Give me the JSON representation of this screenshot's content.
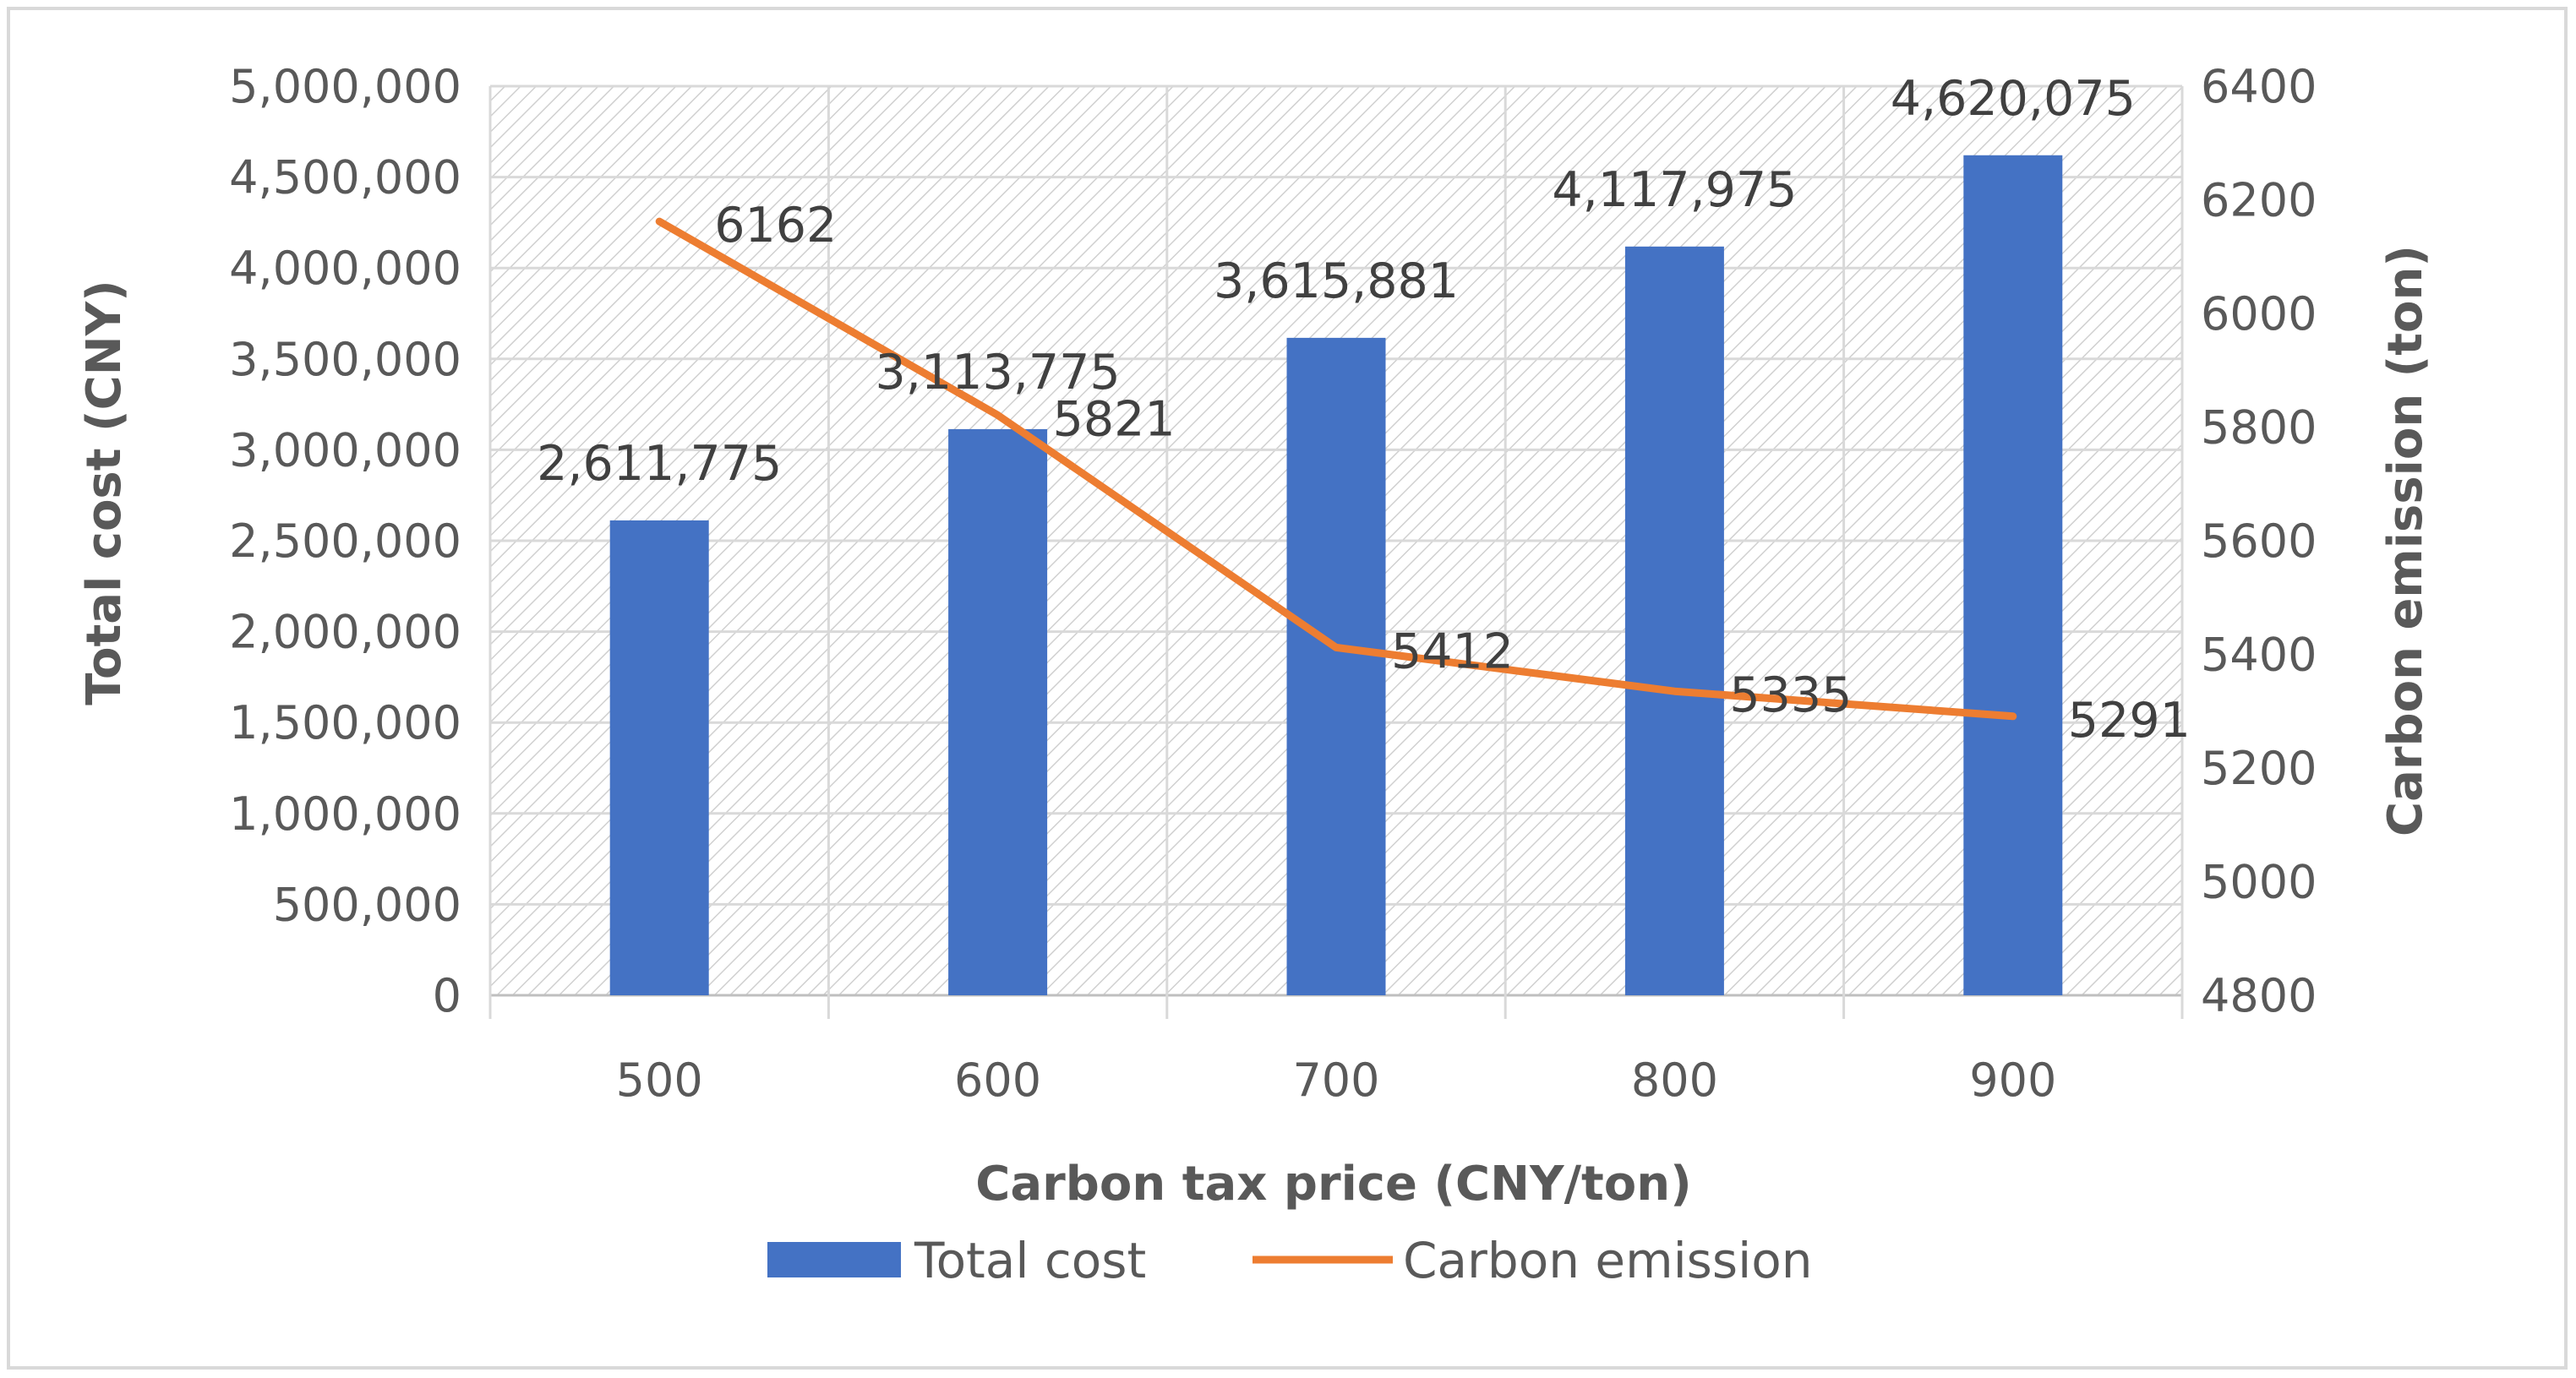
{
  "chart_data": {
    "type": "bar+line",
    "categories": [
      "500",
      "600",
      "700",
      "800",
      "900"
    ],
    "series": [
      {
        "name": "Total cost",
        "type": "bar",
        "axis": "left",
        "values": [
          2611775,
          3113775,
          3615881,
          4117975,
          4620075
        ],
        "labels": [
          "2,611,775",
          "3,113,775",
          "3,615,881",
          "4,117,975",
          "4,620,075"
        ],
        "color": "#4472c4"
      },
      {
        "name": "Carbon emission",
        "type": "line",
        "axis": "right",
        "values": [
          6162,
          5821,
          5412,
          5335,
          5291
        ],
        "labels": [
          "6162",
          "5821",
          "5412",
          "5335",
          "5291"
        ],
        "color": "#ed7d31"
      }
    ],
    "xlabel": "Carbon tax price (CNY/ton)",
    "ylabel": "Total cost (CNY)",
    "y2label": "Carbon emission (ton)",
    "ylim": [
      0,
      5000000
    ],
    "y2lim": [
      4800,
      6400
    ],
    "yticks": [
      "0",
      "500,000",
      "1,000,000",
      "1,500,000",
      "2,000,000",
      "2,500,000",
      "3,000,000",
      "3,500,000",
      "4,000,000",
      "4,500,000",
      "5,000,000"
    ],
    "y2ticks": [
      "4800",
      "5000",
      "5200",
      "5400",
      "5600",
      "5800",
      "6000",
      "6200",
      "6400"
    ],
    "grid": true,
    "legend": "bottom"
  }
}
